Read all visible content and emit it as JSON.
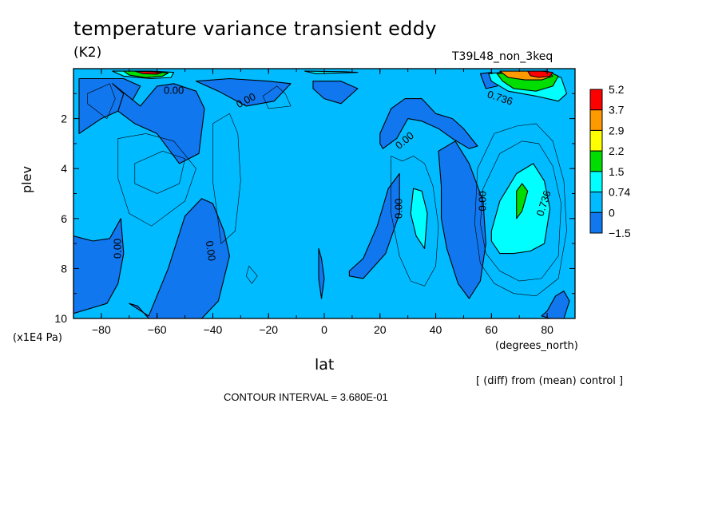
{
  "header": {
    "title": "temperature variance transient eddy",
    "units": "(K2)",
    "run_label": "T39L48_non_3keq"
  },
  "axes": {
    "y_label": "plev",
    "y_units": "(x1E4 Pa)",
    "x_label": "lat",
    "x_units": "(degrees_north)"
  },
  "footer": {
    "note": "[ (diff) from (mean) control ]",
    "contour_interval": "CONTOUR INTERVAL = 3.680E-01"
  },
  "chart_data": {
    "type": "heatmap",
    "title": "temperature variance transient eddy",
    "subtitle": "(K2)",
    "xlabel": "lat",
    "ylabel": "plev",
    "xlim": [
      -90,
      90
    ],
    "ylim": [
      10,
      0
    ],
    "x_ticks": [
      "-80",
      "-60",
      "-40",
      "-20",
      "0",
      "20",
      "40",
      "60",
      "80"
    ],
    "y_ticks": [
      "2",
      "4",
      "6",
      "8",
      "10"
    ],
    "contour_labels": [
      "0.00",
      "0.00",
      "0.00",
      "0.00",
      "0.00",
      "0.00",
      "0.00",
      "0.736",
      "0.736"
    ],
    "colorbar": {
      "labels": [
        "5.2",
        "3.7",
        "2.9",
        "2.2",
        "1.5",
        "0.74",
        "0",
        "-1.5"
      ],
      "colors": [
        "#ff0000",
        "#ff9900",
        "#ffff00",
        "#00dd00",
        "#00ffff",
        "#00bbff",
        "#1177ee"
      ]
    },
    "background_color": "#00bbff",
    "regions": [
      {
        "level": "negative",
        "x": [
          -90,
          -83,
          -77,
          -73,
          -72,
          -74,
          -78,
          -90
        ],
        "y": [
          6.7,
          6.9,
          6.8,
          6.0,
          7.4,
          8.6,
          9.4,
          9.8
        ]
      },
      {
        "level": "negative",
        "x": [
          -88,
          -80,
          -72,
          -66,
          -70,
          -80,
          -88
        ],
        "y": [
          0.4,
          0.4,
          0.4,
          0.7,
          1.5,
          2.0,
          2.6
        ]
      },
      {
        "level": "negative",
        "x": [
          -76,
          -66,
          -60,
          -54,
          -46,
          -43,
          -45,
          -52,
          -60,
          -68,
          -74,
          -72
        ],
        "y": [
          0.6,
          1.5,
          0.7,
          0.6,
          0.9,
          1.6,
          3.4,
          3.8,
          2.6,
          2.2,
          1.7,
          1.0
        ]
      },
      {
        "level": "negative",
        "x": [
          -63,
          -56,
          -50,
          -44,
          -40,
          -36,
          -34,
          -38,
          -44,
          -52,
          -58,
          -63,
          -67,
          -70
        ],
        "y": [
          9.9,
          8.0,
          5.9,
          5.2,
          5.4,
          6.5,
          7.5,
          9.3,
          10,
          10,
          10,
          10,
          9.5,
          9.4
        ]
      },
      {
        "level": "negative",
        "x": [
          -46,
          -34,
          -20,
          -12,
          -18,
          -28,
          -38
        ],
        "y": [
          0.5,
          0.4,
          0.5,
          0.6,
          1.3,
          1.5,
          0.9
        ]
      },
      {
        "level": "negative",
        "x": [
          -4,
          6,
          12,
          6,
          0,
          -4
        ],
        "y": [
          0.5,
          0.5,
          0.8,
          1.4,
          1.2,
          0.8
        ]
      },
      {
        "level": "negative",
        "x": [
          -2,
          -1,
          0,
          -1,
          -2
        ],
        "y": [
          7.2,
          7.6,
          8.4,
          9.2,
          8.4
        ]
      },
      {
        "level": "negative",
        "x": [
          9,
          14,
          19,
          23,
          27,
          27,
          22,
          14,
          9
        ],
        "y": [
          8.1,
          7.6,
          6.3,
          4.8,
          4.2,
          5.8,
          7.4,
          8.4,
          8.3
        ]
      },
      {
        "level": "negative",
        "x": [
          20,
          24,
          29,
          35,
          40,
          46,
          50,
          55,
          52,
          46,
          41,
          35,
          30,
          26,
          21,
          20
        ],
        "y": [
          2.6,
          1.6,
          1.2,
          1.2,
          1.8,
          2.0,
          2.4,
          3.1,
          3.2,
          2.8,
          2.4,
          2.1,
          2.0,
          2.8,
          3.2,
          3.0
        ]
      },
      {
        "level": "negative",
        "x": [
          41,
          47,
          52,
          57,
          58,
          56,
          52,
          48,
          44,
          42,
          42
        ],
        "y": [
          3.3,
          2.9,
          3.8,
          5.3,
          7.0,
          8.5,
          9.2,
          8.6,
          7.2,
          6.0,
          4.7
        ]
      },
      {
        "level": "negative",
        "x": [
          56,
          60,
          64,
          62,
          58
        ],
        "y": [
          0.2,
          0.15,
          0.35,
          0.7,
          0.8
        ]
      },
      {
        "level": "negative",
        "x": [
          80,
          83,
          86,
          88,
          86,
          81,
          78,
          78
        ],
        "y": [
          9.7,
          9.1,
          8.9,
          9.3,
          10,
          10,
          9.9,
          9.9
        ]
      },
      {
        "level": "positive",
        "x": [
          32,
          35,
          37,
          36,
          33,
          31
        ],
        "y": [
          4.8,
          4.9,
          5.8,
          7.2,
          6.7,
          5.8
        ]
      },
      {
        "level": "positive",
        "x": [
          60,
          63,
          69,
          75,
          79,
          81,
          79,
          74,
          68,
          63,
          60
        ],
        "y": [
          6.5,
          5.3,
          4.2,
          3.8,
          4.5,
          5.6,
          7.0,
          7.3,
          7.4,
          7.4,
          6.9
        ]
      },
      {
        "level": "positive",
        "x": [
          59,
          66,
          72,
          76,
          80,
          85,
          87,
          84,
          76,
          66,
          60
        ],
        "y": [
          0.2,
          0.12,
          0.1,
          0.2,
          0.25,
          0.35,
          1.0,
          1.3,
          1.1,
          0.9,
          0.5
        ]
      },
      {
        "level": "positive",
        "x": [
          -76,
          -70,
          -62,
          -54,
          -55,
          -62,
          -72
        ],
        "y": [
          0.1,
          0.1,
          0.1,
          0.15,
          0.35,
          0.4,
          0.3
        ]
      },
      {
        "level": "positive",
        "x": [
          -7,
          7,
          12,
          -3
        ],
        "y": [
          0.1,
          0.12,
          0.15,
          0.2
        ]
      },
      {
        "level": "high",
        "x": [
          69,
          71,
          73,
          71,
          69,
          69
        ],
        "y": [
          4.9,
          4.6,
          4.9,
          5.7,
          6.0,
          5.4
        ]
      },
      {
        "level": "high",
        "x": [
          62,
          68,
          74,
          80,
          84,
          82,
          76,
          68,
          64
        ],
        "y": [
          0.2,
          0.15,
          0.1,
          0.1,
          0.3,
          0.7,
          0.9,
          0.8,
          0.5
        ]
      },
      {
        "level": "high",
        "x": [
          -72,
          -66,
          -60,
          -56,
          -58,
          -64,
          -70
        ],
        "y": [
          0.1,
          0.1,
          0.12,
          0.18,
          0.3,
          0.36,
          0.26
        ]
      },
      {
        "level": "peak",
        "x": [
          63,
          68,
          74,
          80,
          82,
          78,
          72,
          66
        ],
        "y": [
          0.1,
          0.1,
          0.1,
          0.1,
          0.3,
          0.45,
          0.45,
          0.35
        ]
      },
      {
        "level": "top",
        "x": [
          73,
          78,
          82,
          81,
          77,
          74
        ],
        "y": [
          0.1,
          0.1,
          0.15,
          0.3,
          0.35,
          0.28
        ]
      },
      {
        "level": "top",
        "x": [
          -68,
          -62,
          -58,
          -60,
          -65
        ],
        "y": [
          0.1,
          0.12,
          0.15,
          0.22,
          0.2
        ]
      }
    ],
    "contour_lines": [
      {
        "x": [
          -85,
          -77,
          -75,
          -78,
          -85
        ],
        "y": [
          1.0,
          0.6,
          1.2,
          2.0,
          1.4
        ]
      },
      {
        "x": [
          -68,
          -58,
          -50,
          -52,
          -60,
          -68
        ],
        "y": [
          3.8,
          3.3,
          3.6,
          4.6,
          5.0,
          4.6
        ]
      },
      {
        "x": [
          -74,
          -64,
          -54,
          -46,
          -50,
          -62,
          -70,
          -74
        ],
        "y": [
          2.8,
          2.6,
          2.9,
          4.0,
          5.3,
          6.3,
          5.8,
          4.4
        ]
      },
      {
        "x": [
          -40,
          -34,
          -31,
          -30,
          -32,
          -37,
          -40
        ],
        "y": [
          2.2,
          1.8,
          2.6,
          4.5,
          6.5,
          7.0,
          4.5
        ]
      },
      {
        "x": [
          24,
          28,
          32,
          36,
          39,
          41,
          40,
          36,
          31,
          27,
          24
        ],
        "y": [
          3.5,
          3.7,
          3.5,
          3.8,
          4.7,
          6.3,
          7.9,
          8.7,
          8.5,
          7.5,
          5.8
        ]
      },
      {
        "x": [
          57,
          63,
          71,
          77,
          82,
          85,
          84,
          78,
          70,
          63,
          58,
          56
        ],
        "y": [
          4.8,
          3.4,
          2.9,
          3.0,
          3.9,
          5.4,
          7.5,
          8.4,
          8.5,
          8.1,
          7.4,
          6.2
        ]
      },
      {
        "x": [
          55,
          61,
          69,
          76,
          82,
          86,
          87,
          84,
          76,
          68,
          61,
          56,
          54
        ],
        "y": [
          4.0,
          2.6,
          2.3,
          2.2,
          2.9,
          4.5,
          6.5,
          8.4,
          9.1,
          9.0,
          8.6,
          7.8,
          6.2
        ]
      },
      {
        "x": [
          -22,
          -17,
          -14,
          -12,
          -20
        ],
        "y": [
          1.1,
          0.7,
          1.0,
          1.5,
          1.6
        ]
      },
      {
        "x": [
          -27,
          -24,
          -26,
          -28
        ],
        "y": [
          7.9,
          8.3,
          8.6,
          8.3
        ]
      }
    ]
  }
}
